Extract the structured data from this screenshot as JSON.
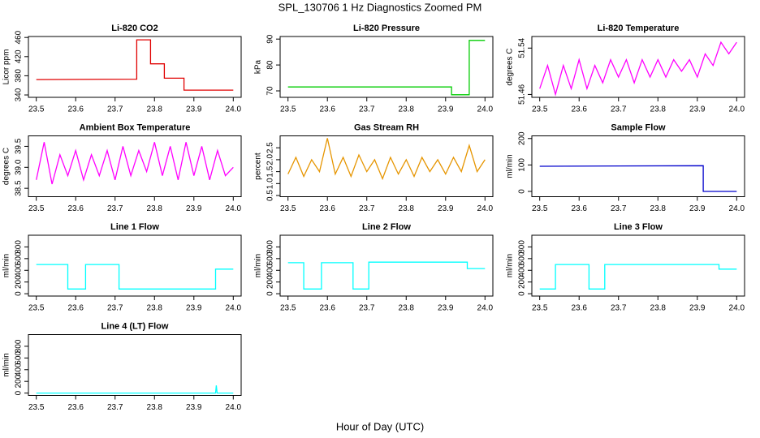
{
  "title": "SPL_130706  1 Hz Diagnostics Zoomed PM",
  "xlabel": "Hour of Day (UTC)",
  "chart_data": [
    {
      "type": "line",
      "title": "Li-820 CO2",
      "ylabel": "Licor ppm",
      "color": "#e00000",
      "x": [
        23.5,
        23.755,
        23.755,
        23.79,
        23.79,
        23.825,
        23.825,
        23.875,
        23.875,
        24.0
      ],
      "values": [
        372,
        373,
        455,
        455,
        405,
        405,
        375,
        375,
        350,
        350
      ],
      "xlim": [
        23.48,
        24.02
      ],
      "xticks": [
        23.5,
        23.6,
        23.7,
        23.8,
        23.9,
        {
          "value": 24,
          "label": "24.0"
        }
      ],
      "ylim": [
        335,
        462
      ],
      "yticks": [
        340,
        380,
        420,
        460
      ]
    },
    {
      "type": "line",
      "title": "Li-820 Pressure",
      "ylabel": "kPa",
      "color": "#00cc00",
      "x": [
        23.5,
        23.915,
        23.915,
        23.96,
        23.96,
        24.0
      ],
      "values": [
        71.5,
        71.5,
        68.5,
        68.5,
        89.5,
        89.5
      ],
      "xlim": [
        23.48,
        24.02
      ],
      "xticks": [
        23.5,
        23.6,
        23.7,
        23.8,
        23.9,
        {
          "value": 24,
          "label": "24.0"
        }
      ],
      "ylim": [
        67.5,
        91
      ],
      "yticks": [
        70,
        80,
        90
      ]
    },
    {
      "type": "line",
      "title": "Li-820 Temperature",
      "ylabel": "degrees C",
      "color": "#ff00ff",
      "x": [
        23.5,
        23.52,
        23.54,
        23.56,
        23.58,
        23.6,
        23.62,
        23.64,
        23.66,
        23.68,
        23.7,
        23.72,
        23.74,
        23.76,
        23.78,
        23.8,
        23.82,
        23.84,
        23.86,
        23.88,
        23.9,
        23.92,
        23.94,
        23.96,
        23.98,
        24.0
      ],
      "values": [
        51.47,
        51.51,
        51.46,
        51.51,
        51.47,
        51.52,
        51.47,
        51.51,
        51.48,
        51.52,
        51.49,
        51.52,
        51.48,
        51.52,
        51.49,
        51.52,
        51.49,
        51.52,
        51.5,
        51.52,
        51.49,
        51.53,
        51.51,
        51.55,
        51.53,
        51.55
      ],
      "xlim": [
        23.48,
        24.02
      ],
      "xticks": [
        23.5,
        23.6,
        23.7,
        23.8,
        23.9,
        {
          "value": 24,
          "label": "24.0"
        }
      ],
      "ylim": [
        51.455,
        51.56
      ],
      "yticks": [
        51.46,
        51.54
      ]
    },
    {
      "type": "line",
      "title": "Ambient Box Temperature",
      "ylabel": "degrees C",
      "color": "#ff00ff",
      "x": [
        23.5,
        23.52,
        23.54,
        23.56,
        23.58,
        23.6,
        23.62,
        23.64,
        23.66,
        23.68,
        23.7,
        23.72,
        23.74,
        23.76,
        23.78,
        23.8,
        23.82,
        23.84,
        23.86,
        23.88,
        23.9,
        23.92,
        23.94,
        23.96,
        23.98,
        24.0
      ],
      "values": [
        38.7,
        39.6,
        38.6,
        39.3,
        38.8,
        39.4,
        38.7,
        39.3,
        38.8,
        39.4,
        38.7,
        39.5,
        38.8,
        39.4,
        38.9,
        39.6,
        38.8,
        39.5,
        38.7,
        39.6,
        38.8,
        39.5,
        38.7,
        39.4,
        38.8,
        39.0
      ],
      "xlim": [
        23.48,
        24.02
      ],
      "xticks": [
        23.5,
        23.6,
        23.7,
        23.8,
        23.9,
        {
          "value": 24,
          "label": "24.0"
        }
      ],
      "ylim": [
        38.3,
        39.75
      ],
      "yticks": [
        38.5,
        {
          "value": 39,
          "label": "39.0"
        },
        39.5
      ]
    },
    {
      "type": "line",
      "title": "Gas Stream RH",
      "ylabel": "percent",
      "color": "#e69500",
      "x": [
        23.5,
        23.52,
        23.54,
        23.56,
        23.58,
        23.6,
        23.62,
        23.64,
        23.66,
        23.68,
        23.7,
        23.72,
        23.74,
        23.76,
        23.78,
        23.8,
        23.82,
        23.84,
        23.86,
        23.88,
        23.9,
        23.92,
        23.94,
        23.96,
        23.98,
        24.0
      ],
      "values": [
        1.4,
        2.1,
        1.3,
        2.0,
        1.5,
        2.9,
        1.4,
        2.1,
        1.3,
        2.2,
        1.5,
        2.0,
        1.2,
        2.1,
        1.4,
        2.0,
        1.3,
        2.1,
        1.5,
        2.0,
        1.4,
        2.1,
        1.5,
        2.6,
        1.5,
        2.0
      ],
      "xlim": [
        23.48,
        24.02
      ],
      "xticks": [
        23.5,
        23.6,
        23.7,
        23.8,
        23.9,
        {
          "value": 24,
          "label": "24.0"
        }
      ],
      "ylim": [
        0.45,
        3.0
      ],
      "yticks": [
        0.5,
        {
          "value": 1,
          "label": "1.0"
        },
        1.5,
        {
          "value": 2,
          "label": "2.0"
        },
        2.5
      ]
    },
    {
      "type": "line",
      "title": "Sample Flow",
      "ylabel": "ml/min",
      "color": "#0000cc",
      "x": [
        23.5,
        23.915,
        23.915,
        24.0
      ],
      "values": [
        95,
        97,
        0,
        0
      ],
      "xlim": [
        23.48,
        24.02
      ],
      "xticks": [
        23.5,
        23.6,
        23.7,
        23.8,
        23.9,
        {
          "value": 24,
          "label": "24.0"
        }
      ],
      "ylim": [
        -20,
        210
      ],
      "yticks": [
        0,
        100,
        200
      ]
    },
    {
      "type": "line",
      "title": "Line 1 Flow",
      "ylabel": "ml/min",
      "color": "#00ffff",
      "x": [
        23.5,
        23.58,
        23.58,
        23.625,
        23.625,
        23.71,
        23.71,
        23.955,
        23.955,
        24.0
      ],
      "values": [
        500,
        500,
        80,
        80,
        500,
        500,
        80,
        80,
        420,
        420
      ],
      "xlim": [
        23.48,
        24.02
      ],
      "xticks": [
        23.5,
        23.6,
        23.7,
        23.8,
        23.9,
        {
          "value": 24,
          "label": "24.0"
        }
      ],
      "ylim": [
        -40,
        1000
      ],
      "yticks": [
        0,
        200,
        400,
        600,
        800
      ]
    },
    {
      "type": "line",
      "title": "Line 2 Flow",
      "ylabel": "ml/min",
      "color": "#00ffff",
      "x": [
        23.5,
        23.54,
        23.54,
        23.585,
        23.585,
        23.665,
        23.665,
        23.705,
        23.705,
        23.955,
        23.955,
        24.0
      ],
      "values": [
        530,
        530,
        80,
        80,
        530,
        530,
        80,
        80,
        540,
        540,
        430,
        430
      ],
      "xlim": [
        23.48,
        24.02
      ],
      "xticks": [
        23.5,
        23.6,
        23.7,
        23.8,
        23.9,
        {
          "value": 24,
          "label": "24.0"
        }
      ],
      "ylim": [
        -40,
        1000
      ],
      "yticks": [
        0,
        200,
        400,
        600,
        800
      ]
    },
    {
      "type": "line",
      "title": "Line 3 Flow",
      "ylabel": "ml/min",
      "color": "#00ffff",
      "x": [
        23.5,
        23.54,
        23.54,
        23.625,
        23.625,
        23.665,
        23.665,
        23.955,
        23.955,
        24.0
      ],
      "values": [
        80,
        80,
        500,
        500,
        80,
        80,
        500,
        500,
        420,
        420
      ],
      "xlim": [
        23.48,
        24.02
      ],
      "xticks": [
        23.5,
        23.6,
        23.7,
        23.8,
        23.9,
        {
          "value": 24,
          "label": "24.0"
        }
      ],
      "ylim": [
        -40,
        1000
      ],
      "yticks": [
        0,
        200,
        400,
        600,
        800
      ]
    },
    {
      "type": "line",
      "title": "Line 4 (LT) Flow",
      "ylabel": "ml/min",
      "color": "#00ffff",
      "x": [
        23.5,
        23.955,
        23.957,
        23.959,
        24.0
      ],
      "values": [
        0,
        0,
        130,
        0,
        0
      ],
      "xlim": [
        23.48,
        24.02
      ],
      "xticks": [
        23.5,
        23.6,
        23.7,
        23.8,
        23.9,
        {
          "value": 24,
          "label": "24.0"
        }
      ],
      "ylim": [
        -40,
        1000
      ],
      "yticks": [
        0,
        200,
        400,
        600,
        800
      ]
    }
  ]
}
